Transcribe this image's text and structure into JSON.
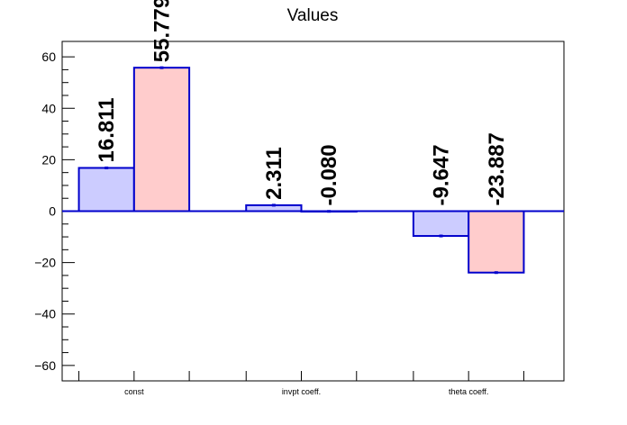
{
  "chart_data": {
    "type": "bar",
    "title": "Values",
    "categories": [
      "const",
      "invpt coeff.",
      "theta coeff."
    ],
    "series": [
      {
        "values": [
          16.811,
          2.311,
          -9.647
        ],
        "color": "#ccccff",
        "labels": [
          "16.811",
          "2.311",
          "-9.647"
        ]
      },
      {
        "values": [
          55.779,
          -0.08,
          -23.887
        ],
        "color": "#ffcccc",
        "labels": [
          "55.779",
          "-0.080",
          "-23.887"
        ]
      }
    ],
    "edge_color": "#0000cc",
    "xlabel": "",
    "ylabel": "",
    "ylim": [
      -66,
      66
    ],
    "yticks": [
      -60,
      -40,
      -20,
      0,
      20,
      40,
      60
    ],
    "ytick_labels": [
      "−60",
      "−40",
      "−20",
      "0",
      "20",
      "40",
      "60"
    ],
    "grid": false,
    "legend": "none"
  }
}
